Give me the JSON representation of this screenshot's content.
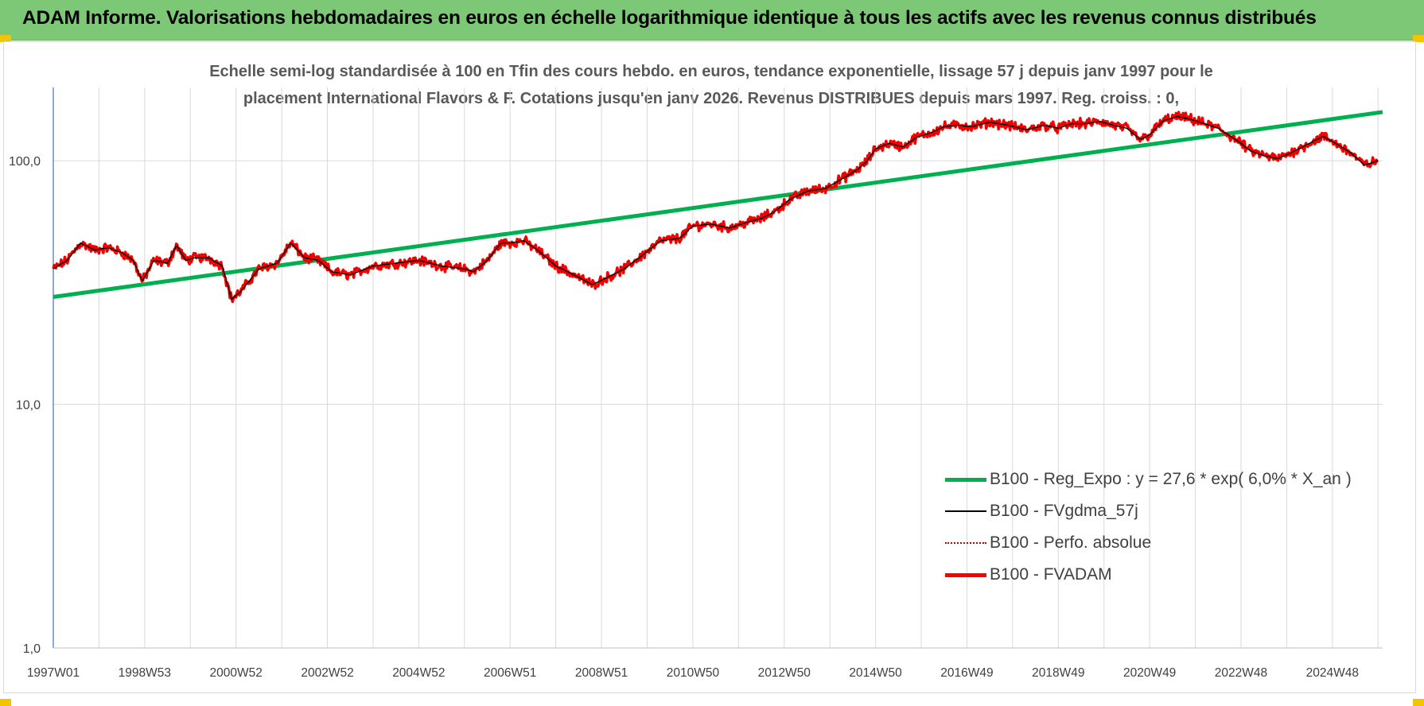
{
  "banner": {
    "title": "ADAM Informe. Valorisations hebdomadaires en euros en échelle logarithmique identique à tous les actifs avec les revenus connus distribués",
    "color": "#7dc876"
  },
  "chart_data": {
    "type": "line",
    "title_lines": [
      "Echelle semi-log standardisée à 100 en Tfin des cours hebdo. en euros, tendance exponentielle, lissage 57 j depuis janv 1997 pour le",
      "placement International Flavors & F. Cotations jusqu'en janv 2026. Revenus DISTRIBUES depuis mars 1997. Reg. croiss. : 0,"
    ],
    "y_scale": "log",
    "ylim": [
      1,
      200
    ],
    "y_ticks": [
      1,
      10,
      100
    ],
    "y_tick_labels": [
      "1,0",
      "10,0",
      "100,0"
    ],
    "x_range": [
      1997.0,
      2026.1
    ],
    "x_tick_positions": [
      1997.0,
      1999.0,
      2001.0,
      2003.0,
      2005.0,
      2007.0,
      2009.0,
      2011.0,
      2013.0,
      2015.0,
      2017.0,
      2019.0,
      2021.0,
      2023.0,
      2025.0
    ],
    "x_tick_labels": [
      "1997W01",
      "1998W53",
      "2000W52",
      "2002W52",
      "2004W52",
      "2006W51",
      "2008W51",
      "2010W50",
      "2012W50",
      "2014W50",
      "2016W49",
      "2018W49",
      "2020W49",
      "2022W48",
      "2024W48"
    ],
    "grid": "vertical",
    "legend_position": "lower-right",
    "series": [
      {
        "name": "B100 - Reg_Expo : y = 27,6 * exp( 6,0% *  X_an )",
        "color": "#00b050",
        "style": "thick",
        "x": [
          1997.0,
          2026.1
        ],
        "y": [
          27.6,
          158.5
        ]
      },
      {
        "name": "B100 - FVgdma_57j",
        "color": "#000000",
        "style": "thin",
        "source": "smooth"
      },
      {
        "name": "B100 - Perfo. absolue",
        "color": "#c00000",
        "style": "dotted",
        "source": "raw"
      },
      {
        "name": "B100 - FVADAM",
        "color": "#ff0000",
        "style": "thick",
        "source": "raw"
      }
    ],
    "price_path": {
      "x": [
        1997.0,
        1997.3,
        1997.6,
        1997.9,
        1998.2,
        1998.5,
        1998.75,
        1998.95,
        1999.2,
        1999.5,
        1999.7,
        1999.9,
        2000.1,
        2000.4,
        2000.7,
        2000.9,
        2001.1,
        2001.5,
        2001.9,
        2002.2,
        2002.5,
        2002.8,
        2003.1,
        2003.5,
        2004.0,
        2004.5,
        2005.0,
        2005.5,
        2006.0,
        2006.2,
        2006.5,
        2006.8,
        2007.0,
        2007.3,
        2007.6,
        2008.0,
        2008.4,
        2008.8,
        2009.1,
        2009.5,
        2009.9,
        2010.3,
        2010.7,
        2011.0,
        2011.4,
        2011.8,
        2012.2,
        2012.5,
        2012.8,
        2013.1,
        2013.5,
        2013.9,
        2014.3,
        2014.6,
        2014.8,
        2015.0,
        2015.3,
        2015.6,
        2015.9,
        2016.2,
        2016.5,
        2016.8,
        2017.1,
        2017.5,
        2017.9,
        2018.3,
        2018.7,
        2019.0,
        2019.3,
        2019.6,
        2019.9,
        2020.2,
        2020.5,
        2020.8,
        2021.0,
        2021.3,
        2021.6,
        2021.9,
        2022.2,
        2022.5,
        2022.8,
        2023.0,
        2023.2,
        2023.5,
        2023.8,
        2024.1,
        2024.5,
        2024.8,
        2025.1,
        2025.4,
        2025.7,
        2026.0
      ],
      "y": [
        36,
        39,
        46,
        43,
        44,
        42,
        39,
        32,
        39,
        38,
        45,
        39,
        40,
        40,
        37,
        27,
        29,
        36,
        38,
        46,
        40,
        39,
        35,
        34,
        37,
        38,
        39,
        37,
        36,
        35,
        39,
        46,
        46,
        47,
        43,
        37,
        34,
        31,
        33,
        36,
        41,
        47,
        48,
        54,
        55,
        53,
        56,
        58,
        62,
        69,
        75,
        77,
        85,
        92,
        99,
        112,
        118,
        114,
        125,
        130,
        138,
        140,
        138,
        144,
        140,
        134,
        140,
        136,
        142,
        142,
        145,
        140,
        136,
        122,
        128,
        146,
        152,
        148,
        142,
        136,
        125,
        118,
        110,
        105,
        102,
        108,
        118,
        126,
        117,
        108,
        96,
        100
      ]
    }
  }
}
